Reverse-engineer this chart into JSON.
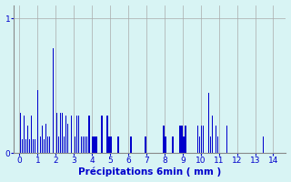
{
  "title": "",
  "xlabel": "Précipitations 6min ( mm )",
  "ylabel": "",
  "bar_color": "#0000cc",
  "background_color": "#d8f4f4",
  "xlim": [
    -0.3,
    14.7
  ],
  "ylim": [
    0,
    1.1
  ],
  "yticks": [
    0,
    1
  ],
  "xticks": [
    0,
    1,
    2,
    3,
    4,
    5,
    6,
    7,
    8,
    9,
    10,
    11,
    12,
    13,
    14
  ],
  "grid_color": "#aaaaaa",
  "bars": [
    [
      0.05,
      0.3
    ],
    [
      0.15,
      0.1
    ],
    [
      0.25,
      0.28
    ],
    [
      0.35,
      0.1
    ],
    [
      0.45,
      0.2
    ],
    [
      0.55,
      0.1
    ],
    [
      0.65,
      0.28
    ],
    [
      0.75,
      0.1
    ],
    [
      0.85,
      0.1
    ],
    [
      1.0,
      0.47
    ],
    [
      1.15,
      0.12
    ],
    [
      1.25,
      0.2
    ],
    [
      1.35,
      0.1
    ],
    [
      1.45,
      0.22
    ],
    [
      1.55,
      0.12
    ],
    [
      1.65,
      0.12
    ],
    [
      1.85,
      0.78
    ],
    [
      2.05,
      0.3
    ],
    [
      2.15,
      0.12
    ],
    [
      2.25,
      0.3
    ],
    [
      2.35,
      0.3
    ],
    [
      2.45,
      0.12
    ],
    [
      2.55,
      0.28
    ],
    [
      2.65,
      0.22
    ],
    [
      2.85,
      0.28
    ],
    [
      3.05,
      0.12
    ],
    [
      3.15,
      0.28
    ],
    [
      3.25,
      0.28
    ],
    [
      3.4,
      0.12
    ],
    [
      3.5,
      0.12
    ],
    [
      3.6,
      0.12
    ],
    [
      3.7,
      0.12
    ],
    [
      3.85,
      0.28
    ],
    [
      4.05,
      0.12
    ],
    [
      4.15,
      0.12
    ],
    [
      4.25,
      0.12
    ],
    [
      4.55,
      0.28
    ],
    [
      4.85,
      0.28
    ],
    [
      4.95,
      0.12
    ],
    [
      5.05,
      0.12
    ],
    [
      5.45,
      0.12
    ],
    [
      6.15,
      0.12
    ],
    [
      6.95,
      0.12
    ],
    [
      7.95,
      0.2
    ],
    [
      8.05,
      0.12
    ],
    [
      8.45,
      0.12
    ],
    [
      8.85,
      0.2
    ],
    [
      8.95,
      0.2
    ],
    [
      9.05,
      0.12
    ],
    [
      9.15,
      0.2
    ],
    [
      9.85,
      0.2
    ],
    [
      9.95,
      0.12
    ],
    [
      10.05,
      0.2
    ],
    [
      10.15,
      0.2
    ],
    [
      10.45,
      0.45
    ],
    [
      10.55,
      0.12
    ],
    [
      10.65,
      0.28
    ],
    [
      10.85,
      0.2
    ],
    [
      10.95,
      0.12
    ],
    [
      11.45,
      0.2
    ],
    [
      13.45,
      0.12
    ]
  ],
  "bar_width": 0.07
}
